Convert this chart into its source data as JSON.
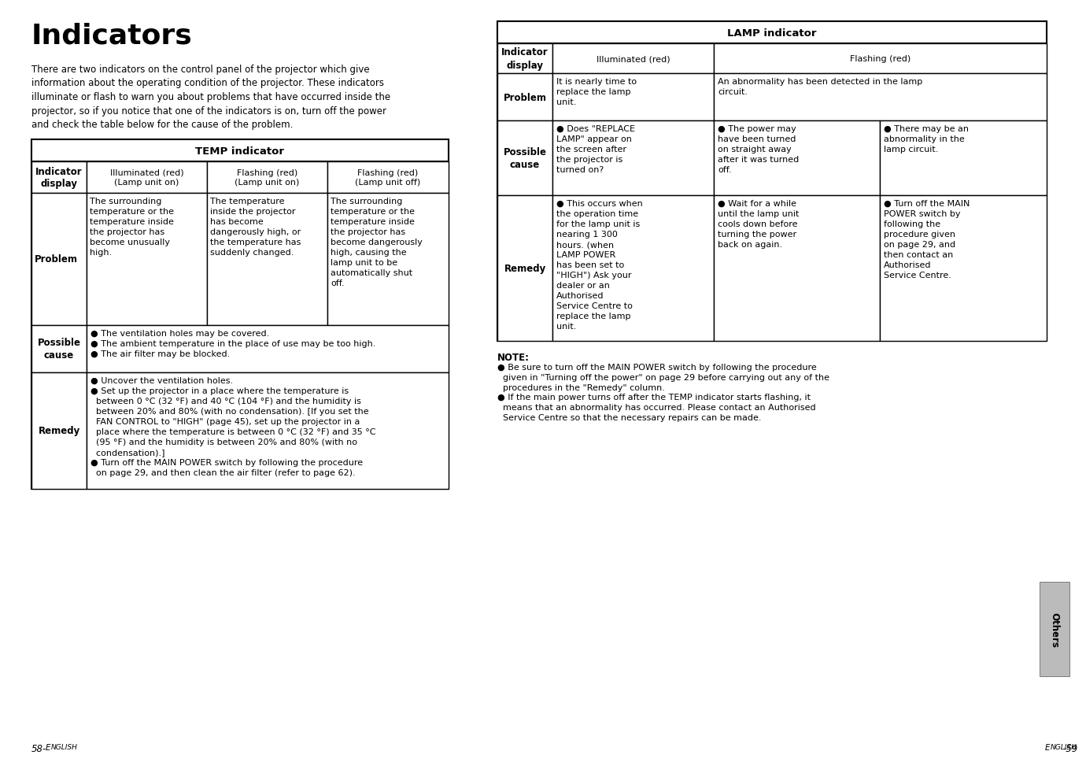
{
  "title": "Indicators",
  "intro_text": "There are two indicators on the control panel of the projector which give\ninformation about the operating condition of the projector. These indicators\nilluminate or flash to warn you about problems that have occurred inside the\nprojector, so if you notice that one of the indicators is on, turn off the power\nand check the table below for the cause of the problem.",
  "temp_header": "TEMP indicator",
  "temp_col1": "Illuminated (red)\n(Lamp unit on)",
  "temp_col2": "Flashing (red)\n(Lamp unit on)",
  "temp_col3": "Flashing (red)\n(Lamp unit off)",
  "temp_prob1": "The surrounding\ntemperature or the\ntemperature inside\nthe projector has\nbecome unusually\nhigh.",
  "temp_prob2": "The temperature\ninside the projector\nhas become\ndangerously high, or\nthe temperature has\nsuddenly changed.",
  "temp_prob3": "The surrounding\ntemperature or the\ntemperature inside\nthe projector has\nbecome dangerously\nhigh, causing the\nlamp unit to be\nautomatically shut\noff.",
  "temp_poss": "● The ventilation holes may be covered.\n● The ambient temperature in the place of use may be too high.\n● The air filter may be blocked.",
  "temp_rem": "● Uncover the ventilation holes.\n● Set up the projector in a place where the temperature is\n  between 0 °C (32 °F) and 40 °C (104 °F) and the humidity is\n  between 20% and 80% (with no condensation). [If you set the\n  FAN CONTROL to \"HIGH\" (page 45), set up the projector in a\n  place where the temperature is between 0 °C (32 °F) and 35 °C\n  (95 °F) and the humidity is between 20% and 80% (with no\n  condensation).]\n● Turn off the MAIN POWER switch by following the procedure\n  on page 29, and then clean the air filter (refer to page 62).",
  "lamp_header": "LAMP indicator",
  "lamp_col1": "Illuminated (red)",
  "lamp_col2": "Flashing (red)",
  "lamp_prob1": "It is nearly time to\nreplace the lamp\nunit.",
  "lamp_prob2": "An abnormality has been detected in the lamp\ncircuit.",
  "lamp_poss1": "● Does \"REPLACE\nLAMP\" appear on\nthe screen after\nthe projector is\nturned on?",
  "lamp_poss2": "● The power may\nhave been turned\non straight away\nafter it was turned\noff.",
  "lamp_poss3": "● There may be an\nabnormality in the\nlamp circuit.",
  "lamp_rem1": "● This occurs when\nthe operation time\nfor the lamp unit is\nnearing 1 300\nhours. (when\nLAMP POWER\nhas been set to\n\"HIGH\") Ask your\ndealer or an\nAuthorised\nService Centre to\nreplace the lamp\nunit.",
  "lamp_rem2": "● Wait for a while\nuntil the lamp unit\ncools down before\nturning the power\nback on again.",
  "lamp_rem3": "● Turn off the MAIN\nPOWER switch by\nfollowing the\nprocedure given\non page 29, and\nthen contact an\nAuthorised\nService Centre.",
  "note_title": "NOTE:",
  "note1": "● Be sure to turn off the MAIN POWER switch by following the procedure\n  given in \"Turning off the power\" on page 29 before carrying out any of the\n  procedures in the \"Remedy\" column.",
  "note2": "● If the main power turns off after the TEMP indicator starts flashing, it\n  means that an abnormality has occurred. Please contact an Authorised\n  Service Centre so that the necessary repairs can be made.",
  "footer_left": "58-",
  "footer_left2": "ENGLISH",
  "footer_right": "E",
  "footer_right2": "NGLISH",
  "footer_right3": "-59",
  "sidebar_text": "Others",
  "bg_color": "#ffffff",
  "text_color": "#000000"
}
